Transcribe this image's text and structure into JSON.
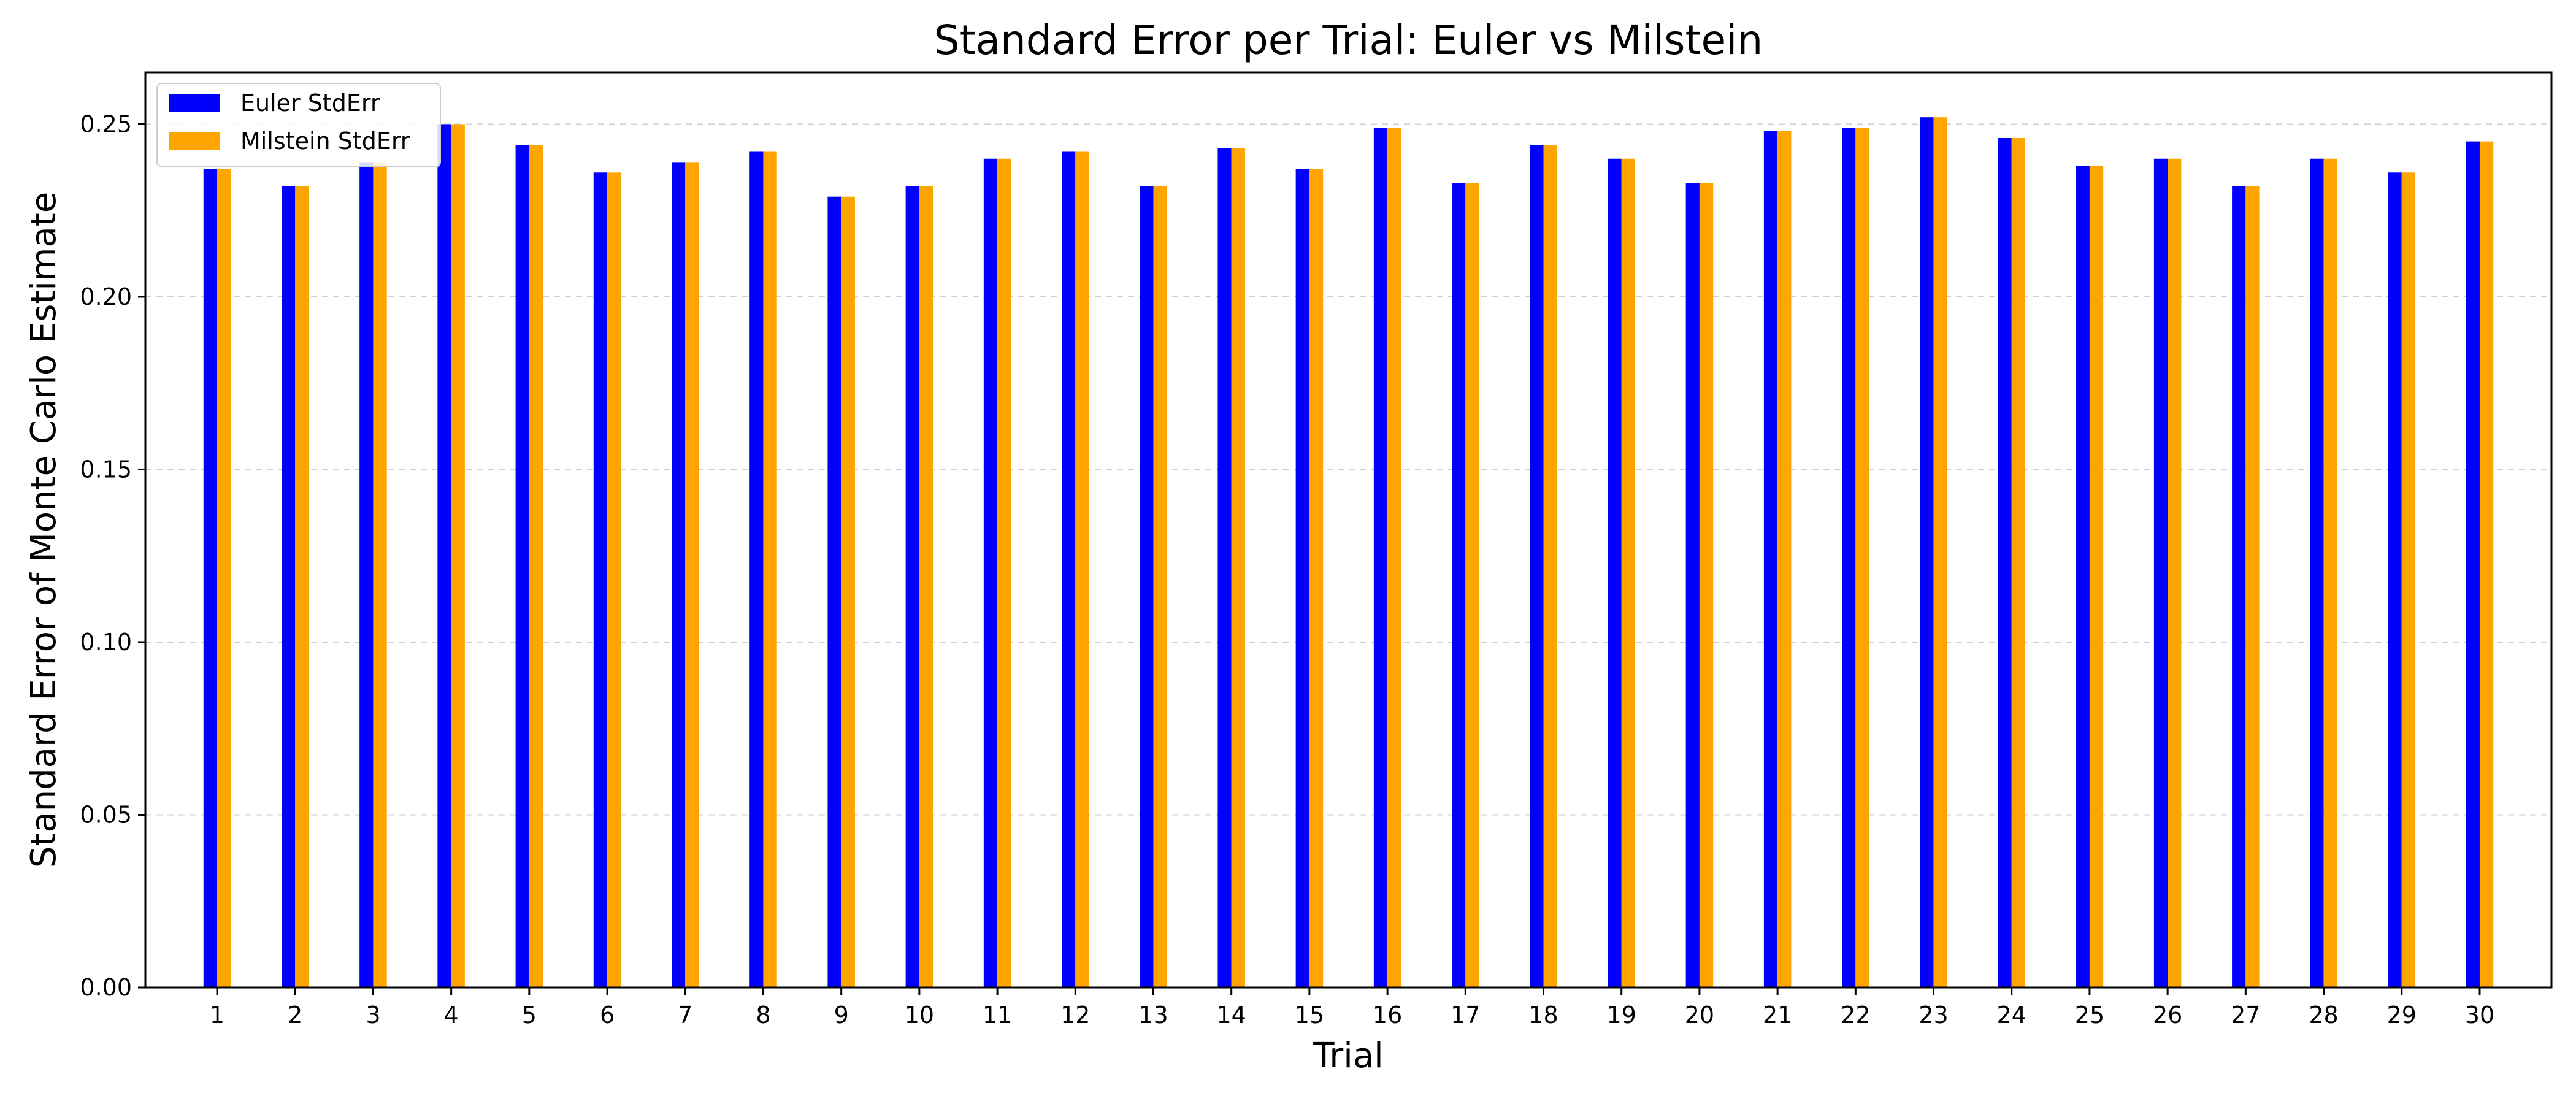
{
  "chart_data": {
    "type": "bar",
    "title": "Standard Error per Trial: Euler vs Milstein",
    "xlabel": "Trial",
    "ylabel": "Standard Error of Monte Carlo Estimate",
    "categories": [
      "1",
      "2",
      "3",
      "4",
      "5",
      "6",
      "7",
      "8",
      "9",
      "10",
      "11",
      "12",
      "13",
      "14",
      "15",
      "16",
      "17",
      "18",
      "19",
      "20",
      "21",
      "22",
      "23",
      "24",
      "25",
      "26",
      "27",
      "28",
      "29",
      "30"
    ],
    "ylim": [
      0,
      0.265
    ],
    "yticks": [
      0.0,
      0.05,
      0.1,
      0.15,
      0.2,
      0.25
    ],
    "ytick_labels": [
      "0.00",
      "0.05",
      "0.10",
      "0.15",
      "0.20",
      "0.25"
    ],
    "grid": "y-dashed",
    "legend_position": "top-left",
    "series": [
      {
        "name": "Euler StdErr",
        "color": "#0000ff",
        "values": [
          0.237,
          0.232,
          0.239,
          0.25,
          0.244,
          0.236,
          0.239,
          0.242,
          0.229,
          0.232,
          0.24,
          0.242,
          0.232,
          0.243,
          0.237,
          0.249,
          0.233,
          0.244,
          0.24,
          0.233,
          0.248,
          0.249,
          0.252,
          0.246,
          0.238,
          0.24,
          0.232,
          0.24,
          0.236,
          0.245
        ]
      },
      {
        "name": "Milstein StdErr",
        "color": "#ffa500",
        "values": [
          0.237,
          0.232,
          0.239,
          0.25,
          0.244,
          0.236,
          0.239,
          0.242,
          0.229,
          0.232,
          0.24,
          0.242,
          0.232,
          0.243,
          0.237,
          0.249,
          0.233,
          0.244,
          0.24,
          0.233,
          0.248,
          0.249,
          0.252,
          0.246,
          0.238,
          0.24,
          0.232,
          0.24,
          0.236,
          0.245
        ]
      }
    ]
  }
}
